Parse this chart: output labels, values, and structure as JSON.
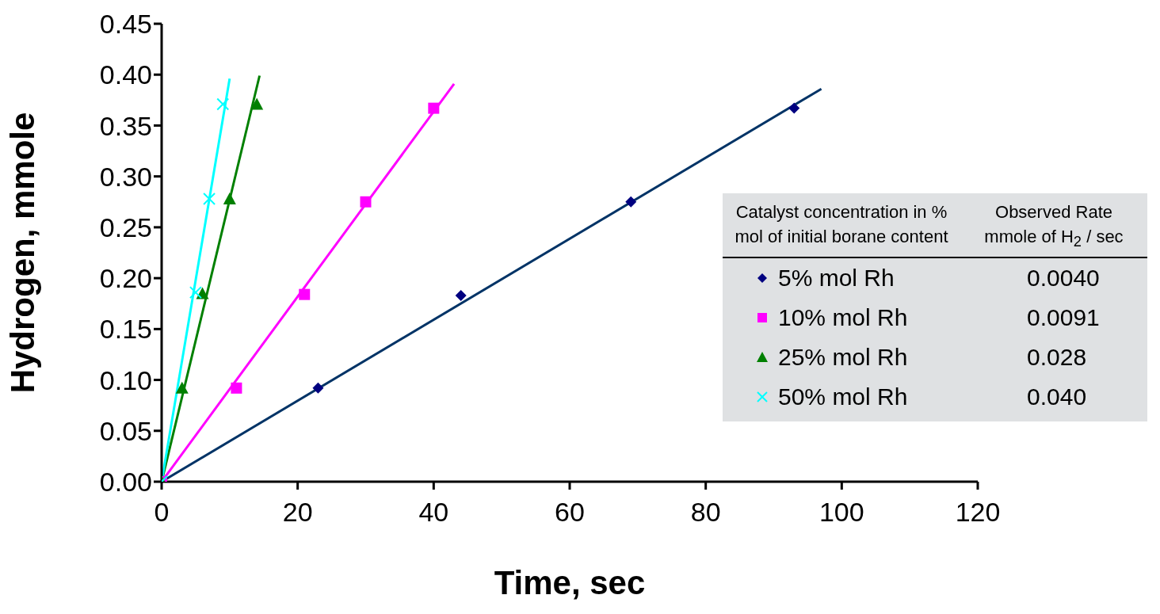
{
  "chart_data": {
    "type": "scatter",
    "xlabel": "Time, sec",
    "ylabel": "Hydrogen, mmole",
    "xlim": [
      0,
      120
    ],
    "xticks": [
      0,
      20,
      40,
      60,
      80,
      100,
      120
    ],
    "ylim": [
      0,
      0.45
    ],
    "yticks": [
      {
        "value": 0,
        "label": "0.00"
      },
      {
        "value": 0.05,
        "label": "0.05"
      },
      {
        "value": 0.1,
        "label": "0.10"
      },
      {
        "value": 0.15,
        "label": "0.15"
      },
      {
        "value": 0.2,
        "label": "0.20"
      },
      {
        "value": 0.25,
        "label": "0.25"
      },
      {
        "value": 0.3,
        "label": "0.30"
      },
      {
        "value": 0.35,
        "label": "0.35"
      },
      {
        "value": 0.4,
        "label": "0.40"
      },
      {
        "value": 0.45,
        "label": "0.45"
      }
    ],
    "grid": false,
    "legend": "right",
    "legend_title": "Catalyst concentration in % mol of initial borane content",
    "annotations": [
      "Observed Rate mmole of H$_{2}$ / sec",
      "0.0040",
      "0.0091",
      "0.028",
      "0.040"
    ],
    "series": [
      {
        "type": "line",
        "color": "#003366",
        "marker": "none",
        "x": [
          0,
          97
        ],
        "values": [
          0,
          0.386
        ]
      },
      {
        "type": "line",
        "color": "#ff00ff",
        "marker": "none",
        "x": [
          0,
          43
        ],
        "values": [
          0,
          0.391
        ]
      },
      {
        "type": "line",
        "color": "#008000",
        "marker": "none",
        "x": [
          0,
          14.4
        ],
        "values": [
          0,
          0.399
        ]
      },
      {
        "type": "line",
        "color": "#00ffff",
        "marker": "none",
        "x": [
          0,
          10
        ],
        "values": [
          0,
          0.396
        ]
      },
      {
        "name": "5% mol Rh",
        "type": "scatter",
        "color": "#000080",
        "marker": "diamond",
        "x": [
          23,
          44,
          69,
          93
        ],
        "values": [
          0.092,
          0.183,
          0.275,
          0.367
        ]
      },
      {
        "name": "10% mol Rh",
        "type": "scatter",
        "color": "#ff00ff",
        "marker": "square",
        "x": [
          0,
          11,
          21,
          30,
          40
        ],
        "values": [
          0,
          0.092,
          0.184,
          0.275,
          0.367
        ]
      },
      {
        "name": "25% mol Rh",
        "type": "scatter",
        "color": "#008000",
        "marker": "triangle",
        "x": [
          0,
          3,
          6,
          10,
          14
        ],
        "values": [
          0,
          0.092,
          0.185,
          0.278,
          0.371
        ]
      },
      {
        "name": "50% mol Rh",
        "type": "scatter",
        "color": "#00ffff",
        "marker": "cross",
        "x": [
          0,
          5,
          7,
          9
        ],
        "values": [
          0,
          0.186,
          0.278,
          0.371
        ]
      }
    ]
  }
}
